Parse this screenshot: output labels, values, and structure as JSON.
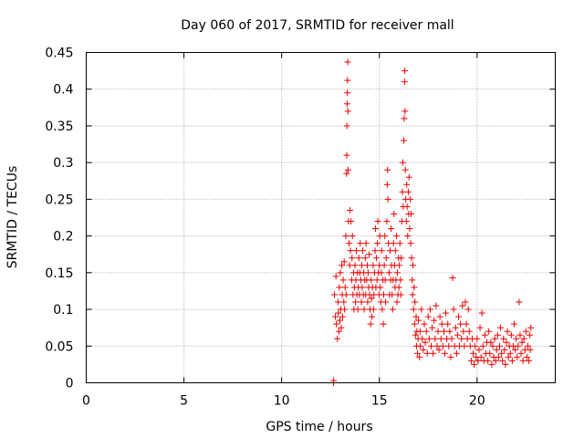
{
  "chart_data": {
    "type": "scatter",
    "title": "Day 060 of 2017, SRMTID for receiver mall",
    "xlabel": "GPS time / hours",
    "ylabel": "SRMTID / TECUs",
    "xlim": [
      0,
      24
    ],
    "ylim": [
      0,
      0.45
    ],
    "xticks": [
      0,
      5,
      10,
      15,
      20
    ],
    "yticks": [
      0,
      0.05,
      0.1,
      0.15,
      0.2,
      0.25,
      0.3,
      0.35,
      0.4,
      0.45
    ],
    "xtick_labels": [
      "0",
      "5",
      "10",
      "15",
      "20"
    ],
    "ytick_labels": [
      "0",
      "0.05",
      "0.1",
      "0.15",
      "0.2",
      "0.25",
      "0.3",
      "0.35",
      "0.4",
      "0.45"
    ],
    "grid": true,
    "marker": "+",
    "color": "#ee0000",
    "series": [
      {
        "name": "SRMTID",
        "points": [
          [
            12.65,
            0.0
          ],
          [
            12.66,
            0.003
          ],
          [
            12.7,
            0.12
          ],
          [
            12.75,
            0.09
          ],
          [
            12.78,
            0.145
          ],
          [
            12.8,
            0.08
          ],
          [
            12.85,
            0.06
          ],
          [
            12.88,
            0.11
          ],
          [
            12.9,
            0.095
          ],
          [
            12.93,
            0.07
          ],
          [
            12.95,
            0.13
          ],
          [
            12.98,
            0.085
          ],
          [
            13.0,
            0.15
          ],
          [
            13.02,
            0.1
          ],
          [
            13.05,
            0.075
          ],
          [
            13.08,
            0.16
          ],
          [
            13.1,
            0.12
          ],
          [
            13.12,
            0.09
          ],
          [
            13.15,
            0.14
          ],
          [
            13.18,
            0.11
          ],
          [
            13.2,
            0.165
          ],
          [
            13.22,
            0.1
          ],
          [
            13.25,
            0.13
          ],
          [
            13.28,
            0.2
          ],
          [
            13.3,
            0.12
          ],
          [
            13.32,
            0.285
          ],
          [
            13.33,
            0.31
          ],
          [
            13.34,
            0.35
          ],
          [
            13.35,
            0.38
          ],
          [
            13.36,
            0.395
          ],
          [
            13.37,
            0.412
          ],
          [
            13.38,
            0.437
          ],
          [
            13.39,
            0.37
          ],
          [
            13.4,
            0.29
          ],
          [
            13.42,
            0.22
          ],
          [
            13.45,
            0.19
          ],
          [
            13.48,
            0.16
          ],
          [
            13.5,
            0.235
          ],
          [
            13.52,
            0.18
          ],
          [
            13.55,
            0.22
          ],
          [
            13.58,
            0.14
          ],
          [
            13.6,
            0.17
          ],
          [
            13.62,
            0.2
          ],
          [
            13.65,
            0.12
          ],
          [
            13.68,
            0.15
          ],
          [
            13.7,
            0.1
          ],
          [
            13.72,
            0.13
          ],
          [
            13.75,
            0.16
          ],
          [
            13.78,
            0.11
          ],
          [
            13.8,
            0.14
          ],
          [
            13.82,
            0.18
          ],
          [
            13.85,
            0.12
          ],
          [
            13.88,
            0.15
          ],
          [
            13.9,
            0.1
          ],
          [
            13.92,
            0.13
          ],
          [
            13.95,
            0.17
          ],
          [
            13.98,
            0.12
          ],
          [
            14.0,
            0.15
          ],
          [
            14.02,
            0.19
          ],
          [
            14.05,
            0.14
          ],
          [
            14.08,
            0.11
          ],
          [
            14.1,
            0.16
          ],
          [
            14.12,
            0.13
          ],
          [
            14.15,
            0.18
          ],
          [
            14.18,
            0.12
          ],
          [
            14.2,
            0.15
          ],
          [
            14.22,
            0.1
          ],
          [
            14.25,
            0.14
          ],
          [
            14.28,
            0.17
          ],
          [
            14.3,
            0.12
          ],
          [
            14.32,
            0.19
          ],
          [
            14.35,
            0.14
          ],
          [
            14.38,
            0.16
          ],
          [
            14.4,
            0.11
          ],
          [
            14.42,
            0.15
          ],
          [
            14.45,
            0.13
          ],
          [
            14.48,
            0.175
          ],
          [
            14.5,
            0.12
          ],
          [
            14.52,
            0.1
          ],
          [
            14.55,
            0.08
          ],
          [
            14.58,
            0.14
          ],
          [
            14.6,
            0.115
          ],
          [
            14.62,
            0.09
          ],
          [
            14.65,
            0.13
          ],
          [
            14.68,
            0.16
          ],
          [
            14.7,
            0.1
          ],
          [
            14.72,
            0.12
          ],
          [
            14.75,
            0.15
          ],
          [
            14.78,
            0.18
          ],
          [
            14.8,
            0.21
          ],
          [
            14.82,
            0.13
          ],
          [
            14.85,
            0.17
          ],
          [
            14.88,
            0.14
          ],
          [
            14.9,
            0.19
          ],
          [
            14.92,
            0.22
          ],
          [
            14.95,
            0.15
          ],
          [
            14.98,
            0.12
          ],
          [
            15.0,
            0.16
          ],
          [
            15.02,
            0.2
          ],
          [
            15.05,
            0.13
          ],
          [
            15.08,
            0.11
          ],
          [
            15.1,
            0.15
          ],
          [
            15.12,
            0.18
          ],
          [
            15.15,
            0.1
          ],
          [
            15.18,
            0.14
          ],
          [
            15.2,
            0.08
          ],
          [
            15.22,
            0.12
          ],
          [
            15.25,
            0.16
          ],
          [
            15.28,
            0.2
          ],
          [
            15.3,
            0.14
          ],
          [
            15.32,
            0.11
          ],
          [
            15.35,
            0.17
          ],
          [
            15.38,
            0.22
          ],
          [
            15.4,
            0.27
          ],
          [
            15.42,
            0.29
          ],
          [
            15.44,
            0.25
          ],
          [
            15.46,
            0.19
          ],
          [
            15.5,
            0.15
          ],
          [
            15.52,
            0.12
          ],
          [
            15.55,
            0.18
          ],
          [
            15.58,
            0.14
          ],
          [
            15.6,
            0.21
          ],
          [
            15.62,
            0.16
          ],
          [
            15.65,
            0.12
          ],
          [
            15.68,
            0.1
          ],
          [
            15.7,
            0.14
          ],
          [
            15.72,
            0.19
          ],
          [
            15.75,
            0.23
          ],
          [
            15.78,
            0.16
          ],
          [
            15.8,
            0.13
          ],
          [
            15.82,
            0.18
          ],
          [
            15.85,
            0.14
          ],
          [
            15.88,
            0.2
          ],
          [
            15.9,
            0.11
          ],
          [
            15.92,
            0.15
          ],
          [
            15.95,
            0.12
          ],
          [
            15.98,
            0.17
          ],
          [
            16.0,
            0.13
          ],
          [
            16.02,
            0.16
          ],
          [
            16.05,
            0.19
          ],
          [
            16.08,
            0.14
          ],
          [
            16.1,
            0.12
          ],
          [
            16.12,
            0.17
          ],
          [
            16.15,
            0.22
          ],
          [
            16.18,
            0.26
          ],
          [
            16.2,
            0.3
          ],
          [
            16.22,
            0.24
          ],
          [
            16.25,
            0.33
          ],
          [
            16.27,
            0.36
          ],
          [
            16.29,
            0.41
          ],
          [
            16.3,
            0.425
          ],
          [
            16.31,
            0.37
          ],
          [
            16.33,
            0.29
          ],
          [
            16.35,
            0.25
          ],
          [
            16.38,
            0.22
          ],
          [
            16.4,
            0.27
          ],
          [
            16.42,
            0.24
          ],
          [
            16.45,
            0.2
          ],
          [
            16.48,
            0.26
          ],
          [
            16.5,
            0.23
          ],
          [
            16.52,
            0.28
          ],
          [
            16.55,
            0.21
          ],
          [
            16.58,
            0.25
          ],
          [
            16.6,
            0.19
          ],
          [
            16.62,
            0.23
          ],
          [
            16.65,
            0.17
          ],
          [
            16.68,
            0.14
          ],
          [
            16.7,
            0.12
          ],
          [
            16.72,
            0.16
          ],
          [
            16.75,
            0.1
          ],
          [
            16.78,
            0.13
          ],
          [
            16.8,
            0.08
          ],
          [
            16.82,
            0.11
          ],
          [
            16.85,
            0.065
          ],
          [
            16.88,
            0.09
          ],
          [
            16.9,
            0.05
          ],
          [
            16.92,
            0.07
          ],
          [
            16.95,
            0.04
          ],
          [
            16.98,
            0.06
          ],
          [
            17.0,
            0.085
          ],
          [
            17.05,
            0.035
          ],
          [
            17.08,
            0.07
          ],
          [
            17.1,
            0.05
          ],
          [
            17.15,
            0.1
          ],
          [
            17.2,
            0.06
          ],
          [
            17.25,
            0.045
          ],
          [
            17.3,
            0.08
          ],
          [
            17.35,
            0.055
          ],
          [
            17.4,
            0.07
          ],
          [
            17.45,
            0.04
          ],
          [
            17.5,
            0.09
          ],
          [
            17.55,
            0.06
          ],
          [
            17.6,
            0.1
          ],
          [
            17.65,
            0.05
          ],
          [
            17.7,
            0.075
          ],
          [
            17.75,
            0.04
          ],
          [
            17.8,
            0.085
          ],
          [
            17.85,
            0.06
          ],
          [
            17.9,
            0.105
          ],
          [
            17.95,
            0.05
          ],
          [
            18.0,
            0.07
          ],
          [
            18.05,
            0.045
          ],
          [
            18.1,
            0.09
          ],
          [
            18.15,
            0.06
          ],
          [
            18.2,
            0.08
          ],
          [
            18.25,
            0.05
          ],
          [
            18.3,
            0.07
          ],
          [
            18.35,
            0.04
          ],
          [
            18.4,
            0.095
          ],
          [
            18.45,
            0.06
          ],
          [
            18.5,
            0.08
          ],
          [
            18.55,
            0.05
          ],
          [
            18.6,
            0.07
          ],
          [
            18.65,
            0.035
          ],
          [
            18.7,
            0.06
          ],
          [
            18.75,
            0.143
          ],
          [
            18.8,
            0.1
          ],
          [
            18.85,
            0.05
          ],
          [
            18.9,
            0.075
          ],
          [
            18.95,
            0.04
          ],
          [
            19.0,
            0.065
          ],
          [
            19.05,
            0.09
          ],
          [
            19.1,
            0.05
          ],
          [
            19.15,
            0.08
          ],
          [
            19.2,
            0.06
          ],
          [
            19.25,
            0.105
          ],
          [
            19.3,
            0.07
          ],
          [
            19.35,
            0.05
          ],
          [
            19.4,
            0.11
          ],
          [
            19.45,
            0.08
          ],
          [
            19.5,
            0.06
          ],
          [
            19.55,
            0.1
          ],
          [
            19.6,
            0.07
          ],
          [
            19.65,
            0.05
          ],
          [
            19.7,
            0.03
          ],
          [
            19.75,
            0.06
          ],
          [
            19.8,
            0.04
          ],
          [
            19.85,
            0.025
          ],
          [
            19.9,
            0.05
          ],
          [
            19.95,
            0.035
          ],
          [
            20.0,
            0.06
          ],
          [
            20.05,
            0.03
          ],
          [
            20.1,
            0.045
          ],
          [
            20.15,
            0.075
          ],
          [
            20.2,
            0.035
          ],
          [
            20.25,
            0.095
          ],
          [
            20.3,
            0.05
          ],
          [
            20.35,
            0.03
          ],
          [
            20.4,
            0.065
          ],
          [
            20.45,
            0.04
          ],
          [
            20.5,
            0.055
          ],
          [
            20.55,
            0.03
          ],
          [
            20.6,
            0.07
          ],
          [
            20.65,
            0.04
          ],
          [
            20.7,
            0.055
          ],
          [
            20.75,
            0.025
          ],
          [
            20.8,
            0.05
          ],
          [
            20.85,
            0.035
          ],
          [
            20.9,
            0.06
          ],
          [
            20.95,
            0.03
          ],
          [
            21.0,
            0.045
          ],
          [
            21.05,
            0.065
          ],
          [
            21.1,
            0.035
          ],
          [
            21.15,
            0.05
          ],
          [
            21.2,
            0.075
          ],
          [
            21.25,
            0.04
          ],
          [
            21.3,
            0.03
          ],
          [
            21.35,
            0.06
          ],
          [
            21.4,
            0.045
          ],
          [
            21.45,
            0.025
          ],
          [
            21.5,
            0.055
          ],
          [
            21.55,
            0.07
          ],
          [
            21.6,
            0.035
          ],
          [
            21.65,
            0.05
          ],
          [
            21.7,
            0.04
          ],
          [
            21.75,
            0.065
          ],
          [
            21.8,
            0.03
          ],
          [
            21.85,
            0.05
          ],
          [
            21.9,
            0.08
          ],
          [
            21.95,
            0.045
          ],
          [
            22.0,
            0.06
          ],
          [
            22.05,
            0.035
          ],
          [
            22.1,
            0.05
          ],
          [
            22.15,
            0.11
          ],
          [
            22.2,
            0.065
          ],
          [
            22.25,
            0.04
          ],
          [
            22.3,
            0.055
          ],
          [
            22.35,
            0.03
          ],
          [
            22.4,
            0.06
          ],
          [
            22.45,
            0.045
          ],
          [
            22.5,
            0.07
          ],
          [
            22.55,
            0.035
          ],
          [
            22.6,
            0.05
          ],
          [
            22.65,
            0.03
          ],
          [
            22.7,
            0.065
          ],
          [
            22.72,
            0.045
          ],
          [
            22.75,
            0.075
          ]
        ]
      }
    ]
  }
}
